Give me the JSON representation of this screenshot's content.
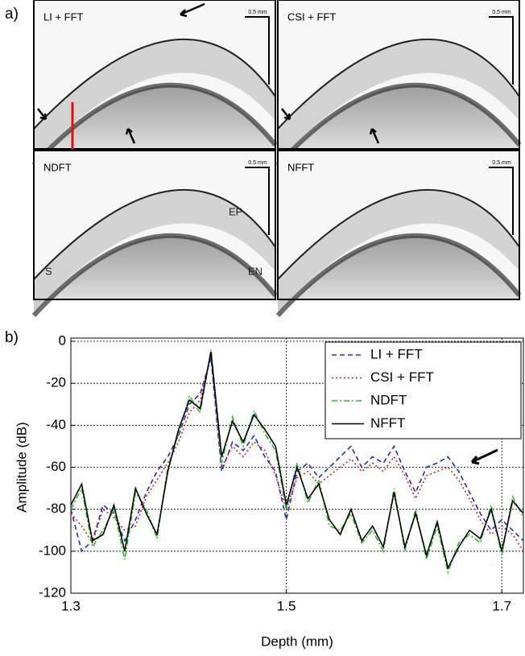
{
  "panel_a": {
    "label": "a)",
    "images": [
      {
        "title": "LI + FFT",
        "scale": "0.5 mm"
      },
      {
        "title": "CSI + FFT",
        "scale": "0.5 mm"
      },
      {
        "title": "NDFT",
        "scale": "0.5 mm"
      },
      {
        "title": "NFFT",
        "scale": "0.5 mm"
      }
    ],
    "annotations": [
      "EP",
      "S",
      "EN"
    ]
  },
  "chart_data": {
    "type": "line",
    "panel_label": "b)",
    "x_label": "Depth (mm)",
    "y_label": "Amplitude (dB)",
    "x": [
      1.3,
      1.31,
      1.32,
      1.33,
      1.34,
      1.35,
      1.36,
      1.37,
      1.38,
      1.39,
      1.4,
      1.41,
      1.42,
      1.43,
      1.44,
      1.45,
      1.46,
      1.47,
      1.48,
      1.49,
      1.5,
      1.51,
      1.52,
      1.53,
      1.54,
      1.55,
      1.56,
      1.57,
      1.58,
      1.59,
      1.6,
      1.61,
      1.62,
      1.63,
      1.64,
      1.65,
      1.66,
      1.67,
      1.68,
      1.69,
      1.7,
      1.71,
      1.72
    ],
    "series": [
      {
        "name": "LI + FFT",
        "color": "#1f2fd6",
        "dash": "6,4",
        "values": [
          -80,
          -100,
          -95,
          -78,
          -82,
          -95,
          -85,
          -72,
          -62,
          -55,
          -45,
          -30,
          -25,
          -8,
          -62,
          -48,
          -52,
          -45,
          -55,
          -62,
          -85,
          -62,
          -58,
          -65,
          -60,
          -55,
          -50,
          -60,
          -55,
          -58,
          -50,
          -62,
          -72,
          -60,
          -58,
          -55,
          -62,
          -72,
          -82,
          -90,
          -85,
          -90,
          -95
        ]
      },
      {
        "name": "CSI + FFT",
        "color": "#e0201b",
        "dash": "2,3",
        "values": [
          -82,
          -88,
          -96,
          -80,
          -84,
          -90,
          -88,
          -74,
          -66,
          -58,
          -48,
          -34,
          -28,
          -6,
          -60,
          -50,
          -55,
          -48,
          -52,
          -64,
          -80,
          -65,
          -62,
          -68,
          -64,
          -60,
          -56,
          -62,
          -58,
          -62,
          -55,
          -64,
          -75,
          -64,
          -62,
          -60,
          -66,
          -75,
          -85,
          -92,
          -88,
          -92,
          -100
        ]
      },
      {
        "name": "NDFT",
        "color": "#22c41e",
        "dash": "7,3,2,3",
        "values": [
          -80,
          -70,
          -98,
          -90,
          -80,
          -104,
          -72,
          -80,
          -94,
          -60,
          -44,
          -26,
          -34,
          -4,
          -58,
          -36,
          -50,
          -33,
          -44,
          -52,
          -80,
          -58,
          -77,
          -66,
          -88,
          -90,
          -82,
          -96,
          -90,
          -100,
          -70,
          -100,
          -80,
          -104,
          -88,
          -110,
          -96,
          -92,
          -96,
          -78,
          -102,
          -74,
          -84
        ]
      },
      {
        "name": "NFFT",
        "color": "#000000",
        "dash": "none",
        "values": [
          -78,
          -68,
          -95,
          -92,
          -78,
          -100,
          -70,
          -82,
          -92,
          -62,
          -42,
          -28,
          -32,
          -5,
          -55,
          -38,
          -48,
          -35,
          -42,
          -50,
          -78,
          -60,
          -75,
          -68,
          -85,
          -92,
          -80,
          -95,
          -88,
          -98,
          -72,
          -98,
          -82,
          -102,
          -86,
          -108,
          -98,
          -90,
          -94,
          -80,
          -100,
          -76,
          -82
        ]
      }
    ],
    "xlim": [
      1.3,
      1.72
    ],
    "ylim": [
      -120,
      0
    ],
    "xticks": [
      1.3,
      1.5,
      1.7
    ],
    "yticks": [
      0,
      -20,
      -40,
      -60,
      -80,
      -100,
      -120
    ],
    "grid": true,
    "legend": "top-right"
  }
}
